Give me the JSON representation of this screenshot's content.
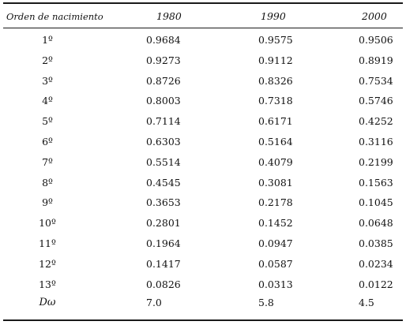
{
  "table": {
    "header": {
      "row_label": "Orden de nacimiento",
      "columns": [
        "1980",
        "1990",
        "2000"
      ]
    },
    "rows": [
      {
        "order": "1º",
        "v1980": "0.9684",
        "v1990": "0.9575",
        "v2000": "0.9506"
      },
      {
        "order": "2º",
        "v1980": "0.9273",
        "v1990": "0.9112",
        "v2000": "0.8919"
      },
      {
        "order": "3º",
        "v1980": "0.8726",
        "v1990": "0.8326",
        "v2000": "0.7534"
      },
      {
        "order": "4º",
        "v1980": "0.8003",
        "v1990": "0.7318",
        "v2000": "0.5746"
      },
      {
        "order": "5º",
        "v1980": "0.7114",
        "v1990": "0.6171",
        "v2000": "0.4252"
      },
      {
        "order": "6º",
        "v1980": "0.6303",
        "v1990": "0.5164",
        "v2000": "0.3116"
      },
      {
        "order": "7º",
        "v1980": "0.5514",
        "v1990": "0.4079",
        "v2000": "0.2199"
      },
      {
        "order": "8º",
        "v1980": "0.4545",
        "v1990": "0.3081",
        "v2000": "0.1563"
      },
      {
        "order": "9º",
        "v1980": "0.3653",
        "v1990": "0.2178",
        "v2000": "0.1045"
      },
      {
        "order": "10º",
        "v1980": "0.2801",
        "v1990": "0.1452",
        "v2000": "0.0648"
      },
      {
        "order": "11º",
        "v1980": "0.1964",
        "v1990": "0.0947",
        "v2000": "0.0385"
      },
      {
        "order": "12º",
        "v1980": "0.1417",
        "v1990": "0.0587",
        "v2000": "0.0234"
      },
      {
        "order": "13º",
        "v1980": "0.0826",
        "v1990": "0.0313",
        "v2000": "0.0122"
      }
    ],
    "summary": {
      "label": "Dω",
      "v1980": "7.0",
      "v1990": "5.8",
      "v2000": "4.5"
    }
  }
}
